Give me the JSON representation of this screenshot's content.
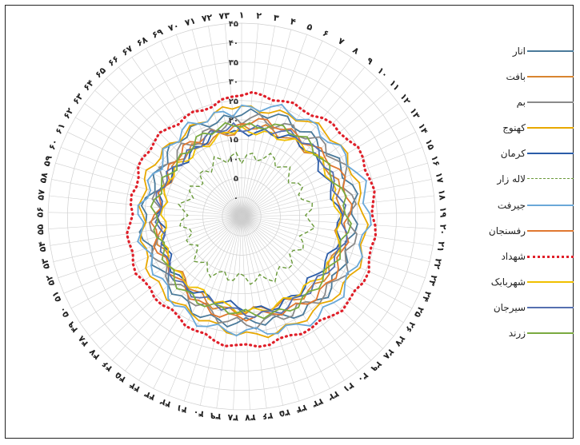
{
  "chart_data": {
    "type": "radar",
    "title": "",
    "categories": [
      "1",
      "2",
      "3",
      "4",
      "5",
      "6",
      "7",
      "8",
      "9",
      "10",
      "11",
      "12",
      "13",
      "14",
      "15",
      "16",
      "17",
      "18",
      "19",
      "20",
      "21",
      "22",
      "23",
      "24",
      "25",
      "26",
      "27",
      "28",
      "29",
      "30",
      "31",
      "32",
      "33",
      "34",
      "35",
      "36",
      "37",
      "38",
      "39",
      "40",
      "41",
      "42",
      "43",
      "44",
      "45",
      "46",
      "47",
      "48",
      "49",
      "50",
      "51",
      "52",
      "53",
      "54",
      "55",
      "56",
      "57",
      "58",
      "59",
      "60",
      "61",
      "62",
      "63",
      "64",
      "65",
      "66",
      "67",
      "68",
      "69",
      "70",
      "71",
      "72",
      "73"
    ],
    "radial_axis": {
      "range": [
        -5,
        45
      ],
      "ticks": [
        -5,
        0,
        5,
        10,
        15,
        20,
        25,
        30,
        35,
        40,
        45
      ],
      "tick_labels": [
        "-۵",
        "۰",
        "۵",
        "۱۰",
        "۱۵",
        "۲۰",
        "۲۵",
        "۳۰",
        "۳۵",
        "۴۰",
        "۴۵"
      ]
    },
    "category_labels": [
      "۱",
      "۲",
      "۳",
      "۴",
      "۵",
      "۶",
      "۷",
      "۸",
      "۹",
      "۱۰",
      "۱۱",
      "۱۲",
      "۱۳",
      "۱۴",
      "۱۵",
      "۱۶",
      "۱۷",
      "۱۸",
      "۱۹",
      "۲۰",
      "۲۱",
      "۲۲",
      "۲۳",
      "۲۴",
      "۲۵",
      "۲۶",
      "۲۷",
      "۲۸",
      "۲۹",
      "۳۰",
      "۳۱",
      "۳۲",
      "۳۳",
      "۳۴",
      "۳۵",
      "۳۶",
      "۳۷",
      "۳۸",
      "۳۹",
      "۴۰",
      "۴۱",
      "۴۲",
      "۴۳",
      "۴۴",
      "۴۵",
      "۴۶",
      "۴۷",
      "۴۸",
      "۴۹",
      "۵۰",
      "۵۱",
      "۵۲",
      "۵۳",
      "۵۴",
      "۵۵",
      "۵۶",
      "۵۷",
      "۵۸",
      "۵۹",
      "۶۰",
      "۶۱",
      "۶۲",
      "۶۳",
      "۶۴",
      "۶۵",
      "۶۶",
      "۶۷",
      "۶۸",
      "۶۹",
      "۷۰",
      "۷۱",
      "۷۲",
      "۷۳"
    ],
    "grid": true,
    "legend_position": "right",
    "series": [
      {
        "name": "انار",
        "color": "#4a7a9a",
        "style": "solid",
        "base": 22,
        "amp": 4,
        "asym": 0.55,
        "wiggle": 1.2
      },
      {
        "name": "بافت",
        "color": "#d98530",
        "style": "solid",
        "base": 18.5,
        "amp": 5,
        "asym": 0.5,
        "wiggle": 1.0
      },
      {
        "name": "بم",
        "color": "#8a8a8a",
        "style": "solid",
        "base": 21,
        "amp": 6,
        "asym": 0.55,
        "wiggle": 1.5
      },
      {
        "name": "کهنوج",
        "color": "#e8a800",
        "style": "solid",
        "base": 24,
        "amp": 6,
        "asym": 0.5,
        "wiggle": 0.9
      },
      {
        "name": "کرمان",
        "color": "#2b5ca8",
        "style": "solid",
        "base": 18,
        "amp": 4,
        "asym": 0.5,
        "wiggle": 1.0
      },
      {
        "name": "لاله زار",
        "color": "#6a9a3a",
        "style": "dashed",
        "base": 11,
        "amp": 3,
        "asym": 0.45,
        "wiggle": 1.4
      },
      {
        "name": "جیرفت",
        "color": "#6aa8d8",
        "style": "solid",
        "base": 24,
        "amp": 7,
        "asym": 0.5,
        "wiggle": 1.2
      },
      {
        "name": "رفسنجان",
        "color": "#e07830",
        "style": "solid",
        "base": 20,
        "amp": 6,
        "asym": 0.5,
        "wiggle": 1.0
      },
      {
        "name": "شهداد",
        "color": "#e0202a",
        "style": "dotted",
        "base": 27,
        "amp": 6,
        "asym": 0.5,
        "wiggle": 0.6
      },
      {
        "name": "شهربابک",
        "color": "#f0c000",
        "style": "solid",
        "base": 18,
        "amp": 5,
        "asym": 0.5,
        "wiggle": 0.9
      },
      {
        "name": "سیرجان",
        "color": "#5570b0",
        "style": "solid",
        "base": 19,
        "amp": 5,
        "asym": 0.5,
        "wiggle": 1.0
      },
      {
        "name": "زرند",
        "color": "#7aaa40",
        "style": "solid",
        "base": 19.5,
        "amp": 5,
        "asym": 0.5,
        "wiggle": 1.0
      }
    ]
  }
}
